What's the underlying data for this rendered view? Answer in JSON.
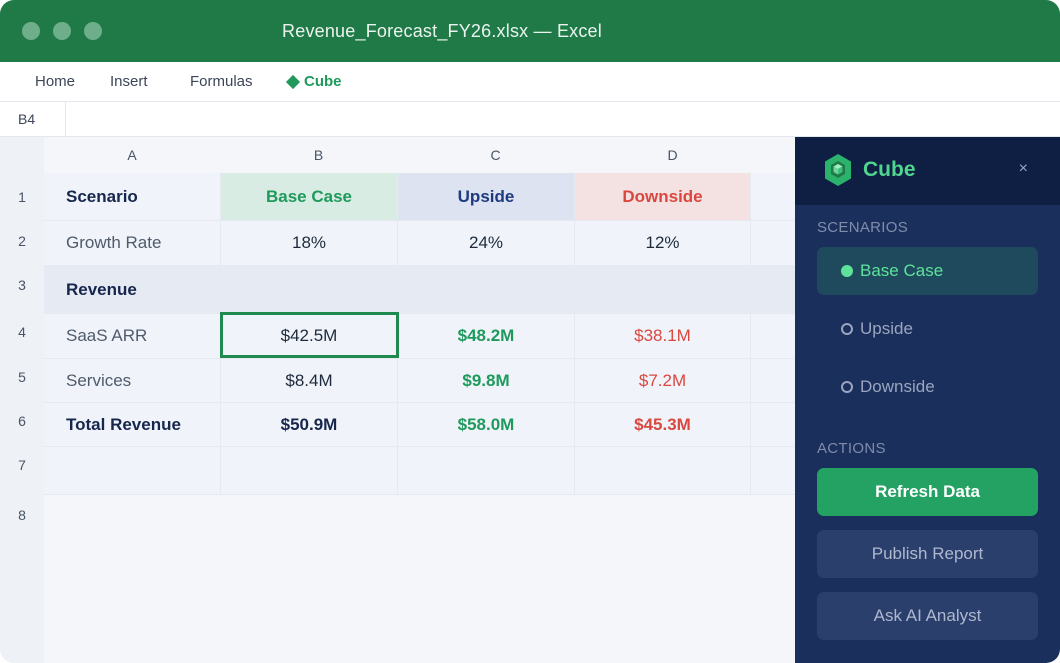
{
  "window": {
    "title": "Revenue_Forecast_FY26.xlsx — Excel"
  },
  "ribbon": {
    "tabs": [
      "Home",
      "Insert",
      "Formulas",
      "Cube"
    ]
  },
  "formula_bar": {
    "name_box": "B4"
  },
  "sheet": {
    "columns": [
      "A",
      "B",
      "C",
      "D"
    ],
    "rows": [
      "1",
      "2",
      "3",
      "4",
      "5",
      "6",
      "7",
      "8"
    ],
    "cells": {
      "a1": "Scenario",
      "b1": "Base Case",
      "c1": "Upside",
      "d1": "Downside",
      "a2": "Growth Rate",
      "b2": "18%",
      "c2": "24%",
      "d2": "12%",
      "a3": "Revenue",
      "a4": "SaaS ARR",
      "b4": "$42.5M",
      "c4": "$48.2M",
      "d4": "$38.1M",
      "a5": "Services",
      "b5": "$8.4M",
      "c5": "$9.8M",
      "d5": "$7.2M",
      "a6": "Total Revenue",
      "b6": "$50.9M",
      "c6": "$58.0M",
      "d6": "$45.3M"
    },
    "selected_cell": "B4"
  },
  "panel": {
    "title": "Cube",
    "close_label": "×",
    "scenarios_heading": "SCENARIOS",
    "scenarios": [
      "Base Case",
      "Upside",
      "Downside"
    ],
    "active_scenario": "Base Case",
    "actions_heading": "ACTIONS",
    "actions": [
      "Refresh Data",
      "Publish Report",
      "Ask AI Analyst"
    ]
  },
  "colors": {
    "titlebar": "#1f7a47",
    "accent_green": "#1f9a5c",
    "upside_blue": "#1e3a80",
    "downside_red": "#d9473f",
    "panel_bg": "#1b2f5c"
  },
  "icons": {
    "cube": "cube-hexagon-icon",
    "cube_tab": "diamond-icon"
  }
}
